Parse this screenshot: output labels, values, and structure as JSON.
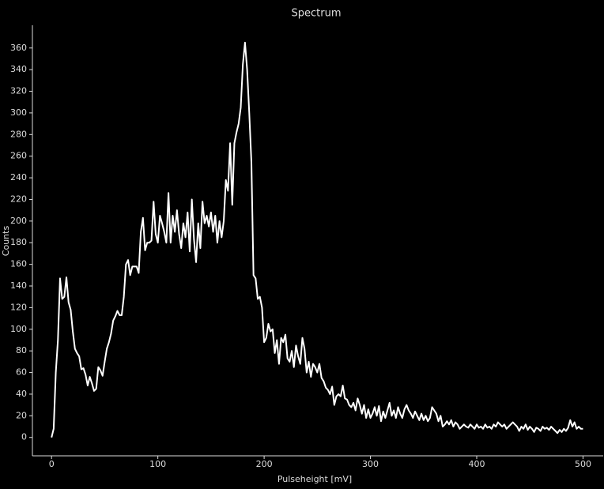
{
  "chart_data": {
    "type": "line",
    "title": "Spectrum",
    "x_label": "Pulseheight [mV]",
    "y_label": "Counts",
    "color": "#ffffff",
    "x": [
      0,
      2,
      4,
      6,
      8,
      10,
      12,
      14,
      16,
      18,
      20,
      22,
      24,
      26,
      28,
      30,
      32,
      34,
      36,
      38,
      40,
      42,
      44,
      46,
      48,
      50,
      52,
      54,
      56,
      58,
      60,
      62,
      64,
      66,
      68,
      70,
      72,
      74,
      76,
      78,
      80,
      82,
      84,
      86,
      88,
      90,
      92,
      94,
      96,
      98,
      100,
      102,
      104,
      106,
      108,
      110,
      112,
      114,
      116,
      118,
      120,
      122,
      124,
      126,
      128,
      130,
      132,
      134,
      136,
      138,
      140,
      142,
      144,
      146,
      148,
      150,
      152,
      154,
      156,
      158,
      160,
      162,
      164,
      166,
      168,
      170,
      172,
      174,
      176,
      178,
      180,
      182,
      184,
      186,
      188,
      190,
      192,
      194,
      196,
      198,
      200,
      202,
      204,
      206,
      208,
      210,
      212,
      214,
      216,
      218,
      220,
      222,
      224,
      226,
      228,
      230,
      232,
      234,
      236,
      238,
      240,
      242,
      244,
      246,
      248,
      250,
      252,
      254,
      256,
      258,
      260,
      262,
      264,
      266,
      268,
      270,
      272,
      274,
      276,
      278,
      280,
      282,
      284,
      286,
      288,
      290,
      292,
      294,
      296,
      298,
      300,
      302,
      304,
      306,
      308,
      310,
      312,
      314,
      316,
      318,
      320,
      322,
      324,
      326,
      328,
      330,
      332,
      334,
      336,
      338,
      340,
      342,
      344,
      346,
      348,
      350,
      352,
      354,
      356,
      358,
      360,
      362,
      364,
      366,
      368,
      370,
      372,
      374,
      376,
      378,
      380,
      382,
      384,
      386,
      388,
      390,
      392,
      394,
      396,
      398,
      400,
      402,
      404,
      406,
      408,
      410,
      412,
      414,
      416,
      418,
      420,
      422,
      424,
      426,
      428,
      430,
      432,
      434,
      436,
      438,
      440,
      442,
      444,
      446,
      448,
      450,
      452,
      454,
      456,
      458,
      460,
      462,
      464,
      466,
      468,
      470,
      472,
      474,
      476,
      478,
      480,
      482,
      484,
      486,
      488,
      490,
      492,
      494,
      496,
      498,
      500
    ],
    "values": [
      0,
      8,
      60,
      90,
      147,
      128,
      130,
      148,
      125,
      118,
      98,
      82,
      78,
      75,
      63,
      64,
      58,
      48,
      56,
      50,
      43,
      45,
      65,
      62,
      57,
      70,
      82,
      88,
      96,
      108,
      112,
      117,
      113,
      113,
      130,
      160,
      164,
      150,
      158,
      158,
      158,
      152,
      190,
      203,
      173,
      180,
      180,
      182,
      218,
      188,
      180,
      205,
      198,
      190,
      180,
      226,
      180,
      205,
      190,
      210,
      188,
      175,
      198,
      185,
      208,
      172,
      220,
      183,
      162,
      198,
      175,
      218,
      198,
      205,
      195,
      208,
      190,
      205,
      180,
      200,
      185,
      200,
      238,
      228,
      272,
      215,
      272,
      282,
      290,
      305,
      345,
      365,
      340,
      300,
      255,
      150,
      147,
      128,
      130,
      120,
      88,
      92,
      105,
      98,
      100,
      78,
      90,
      68,
      92,
      88,
      95,
      73,
      70,
      80,
      65,
      85,
      75,
      68,
      92,
      82,
      60,
      70,
      56,
      68,
      65,
      60,
      68,
      55,
      52,
      46,
      44,
      40,
      47,
      30,
      38,
      40,
      38,
      48,
      36,
      35,
      30,
      28,
      32,
      25,
      36,
      30,
      22,
      30,
      18,
      26,
      18,
      22,
      28,
      20,
      29,
      15,
      24,
      18,
      25,
      32,
      20,
      25,
      18,
      28,
      22,
      18,
      26,
      30,
      25,
      22,
      18,
      24,
      20,
      16,
      22,
      16,
      20,
      15,
      18,
      28,
      25,
      22,
      15,
      20,
      10,
      12,
      15,
      12,
      16,
      10,
      14,
      12,
      8,
      10,
      12,
      10,
      9,
      12,
      10,
      8,
      12,
      9,
      10,
      8,
      12,
      9,
      10,
      8,
      12,
      10,
      14,
      12,
      10,
      12,
      8,
      10,
      12,
      14,
      12,
      10,
      6,
      10,
      8,
      12,
      7,
      10,
      8,
      5,
      9,
      8,
      6,
      10,
      8,
      9,
      7,
      10,
      8,
      6,
      4,
      7,
      5,
      8,
      6,
      9,
      16,
      10,
      14,
      8,
      10,
      8,
      8
    ],
    "xlim": [
      -18,
      519
    ],
    "ylim": [
      -17,
      381
    ],
    "xticks": [
      0,
      100,
      200,
      300,
      400,
      500
    ],
    "yticks": [
      0,
      20,
      40,
      60,
      80,
      100,
      120,
      140,
      160,
      180,
      200,
      220,
      240,
      260,
      280,
      300,
      320,
      340,
      360
    ]
  }
}
